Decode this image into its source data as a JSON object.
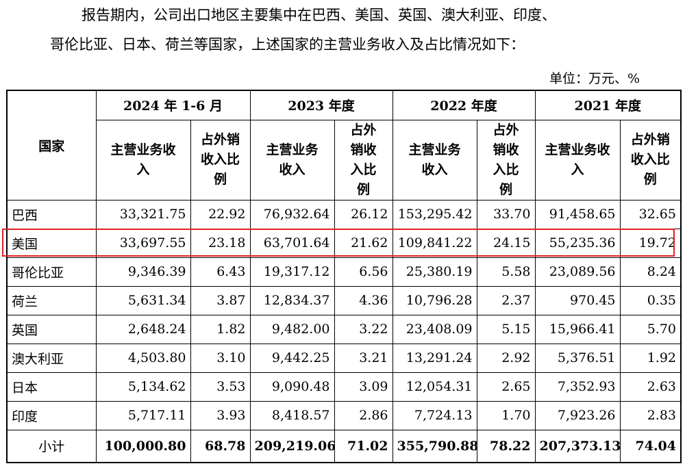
{
  "paragraph": {
    "line1": "报告期内，公司出口地区主要集中在巴西、美国、英国、澳大利亚、印度、",
    "line2": "哥伦比亚、日本、荷兰等国家，上述国家的主营业务收入及占比情况如下："
  },
  "unit_label": "单位：万元、%",
  "table": {
    "country_header": "国家",
    "periods": [
      "2024 年 1-6 月",
      "2023 年度",
      "2022 年度",
      "2021 年度"
    ],
    "sub_headers": [
      [
        "主营业务收入",
        "占外销收入比例"
      ],
      [
        "主营业务收入",
        "占外销收入比例"
      ],
      [
        "主营业务收入",
        "占外销收入比例"
      ],
      [
        "主营业务收入",
        "占外销收入比例"
      ]
    ],
    "rows": [
      {
        "country": "巴西",
        "values": [
          "33,321.75",
          "22.92",
          "76,932.64",
          "26.12",
          "153,295.42",
          "33.70",
          "91,458.65",
          "32.65"
        ]
      },
      {
        "country": "美国",
        "values": [
          "33,697.55",
          "23.18",
          "63,701.64",
          "21.62",
          "109,841.22",
          "24.15",
          "55,235.36",
          "19.72"
        ]
      },
      {
        "country": "哥伦比亚",
        "values": [
          "9,346.39",
          "6.43",
          "19,317.12",
          "6.56",
          "25,380.19",
          "5.58",
          "23,089.56",
          "8.24"
        ]
      },
      {
        "country": "荷兰",
        "values": [
          "5,631.34",
          "3.87",
          "12,834.37",
          "4.36",
          "10,796.28",
          "2.37",
          "970.45",
          "0.35"
        ]
      },
      {
        "country": "英国",
        "values": [
          "2,648.24",
          "1.82",
          "9,482.00",
          "3.22",
          "23,408.09",
          "5.15",
          "15,966.41",
          "5.70"
        ]
      },
      {
        "country": "澳大利亚",
        "values": [
          "4,503.80",
          "3.10",
          "9,442.25",
          "3.21",
          "13,291.24",
          "2.92",
          "5,376.51",
          "1.92"
        ]
      },
      {
        "country": "日本",
        "values": [
          "5,134.62",
          "3.53",
          "9,090.48",
          "3.09",
          "12,054.31",
          "2.65",
          "7,352.93",
          "2.63"
        ]
      },
      {
        "country": "印度",
        "values": [
          "5,717.11",
          "3.93",
          "8,418.57",
          "2.86",
          "7,724.13",
          "1.70",
          "7,923.26",
          "2.83"
        ]
      }
    ],
    "subtotal": {
      "country": "小计",
      "values": [
        "100,000.80",
        "68.78",
        "209,219.06",
        "71.02",
        "355,790.88",
        "78.22",
        "207,373.13",
        "74.04"
      ]
    }
  },
  "highlight": {
    "row_country": "美国",
    "color": "#e02020"
  }
}
